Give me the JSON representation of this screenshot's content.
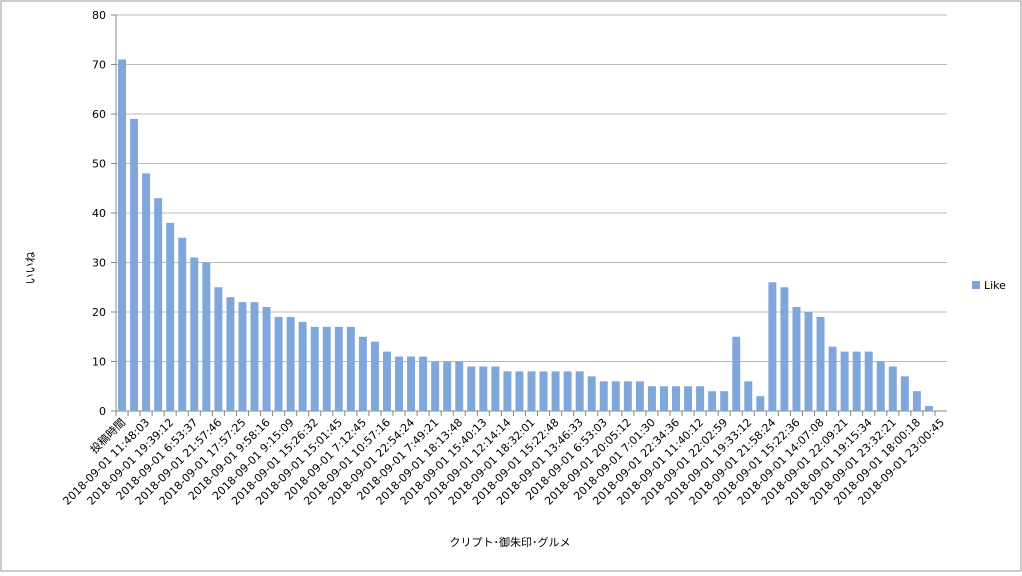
{
  "chart_data": {
    "type": "bar",
    "x_label": "クリプト･御朱印･グルメ",
    "y_label": "いいね",
    "categories": [
      "投稿時間",
      null,
      "2018-09-01 11:48:03",
      null,
      "2018-09-01 19:39:12",
      null,
      "2018-09-01 6:53:37",
      null,
      "2018-09-01 21:57:46",
      null,
      "2018-09-01 17:57:25",
      null,
      "2018-09-01 9:58:16",
      null,
      "2018-09-01 9:15:09",
      null,
      "2018-09-01 15:26:32",
      null,
      "2018-09-01 15:01:45",
      null,
      "2018-09-01 7:12:45",
      null,
      "2018-09-01 10:57:16",
      null,
      "2018-09-01 22:54:24",
      null,
      "2018-09-01 7:49:21",
      null,
      "2018-09-01 18:13:48",
      null,
      "2018-09-01 15:40:13",
      null,
      "2018-09-01 12:14:14",
      null,
      "2018-09-01 18:32:01",
      null,
      "2018-09-01 15:22:48",
      null,
      "2018-09-01 13:46:33",
      null,
      "2018-09-01 6:53:03",
      null,
      "2018-09-01 20:05:12",
      null,
      "2018-09-01 7:01:30",
      null,
      "2018-09-01 22:34:36",
      null,
      "2018-09-01 11:40:12",
      null,
      "2018-09-01 22:02:59",
      null,
      "2018-09-01 19:33:12",
      null,
      "2018-09-01 21:58:24",
      null,
      "2018-09-01 15:22:36",
      null,
      "2018-09-01 14:07:08",
      null,
      "2018-09-01 22:09:21",
      null,
      "2018-09-01 19:15:34",
      null,
      "2018-09-01 23:32:21",
      null,
      "2018-09-01 18:00:18",
      null,
      "2018-09-01 23:00:45"
    ],
    "series": [
      {
        "name": "Like",
        "color": "#7fa7dc",
        "values": [
          71,
          59,
          48,
          43,
          38,
          35,
          31,
          30,
          25,
          23,
          22,
          22,
          21,
          19,
          19,
          18,
          17,
          17,
          17,
          17,
          15,
          14,
          12,
          11,
          11,
          11,
          10,
          10,
          10,
          9,
          9,
          9,
          8,
          8,
          8,
          8,
          8,
          8,
          8,
          7,
          6,
          6,
          6,
          6,
          5,
          5,
          5,
          5,
          5,
          4,
          4,
          15,
          6,
          3,
          26,
          25,
          21,
          20,
          19,
          13,
          12,
          12,
          12,
          10,
          9,
          7,
          4,
          1,
          0
        ]
      }
    ],
    "ylim": [
      0,
      80
    ],
    "yticks": [
      0,
      10,
      20,
      30,
      40,
      50,
      60,
      70,
      80
    ],
    "grid": true,
    "legend": "right"
  }
}
